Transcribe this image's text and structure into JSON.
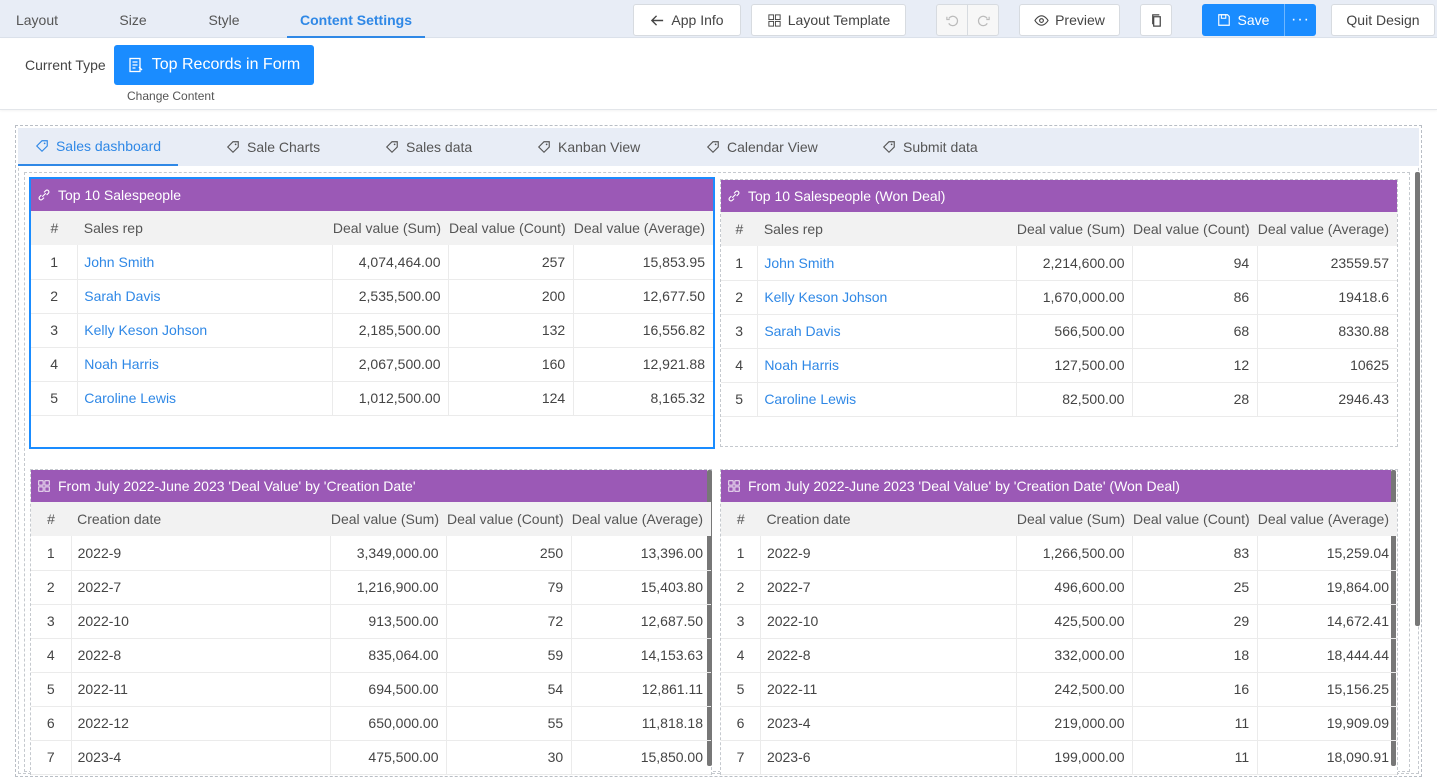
{
  "top_tabs": [
    "Layout",
    "Size",
    "Style",
    "Content Settings"
  ],
  "toolbar": {
    "app_info": "App Info",
    "layout_template": "Layout Template",
    "preview": "Preview",
    "save": "Save",
    "more": "···",
    "quit": "Quit Design"
  },
  "subbar": {
    "current_type_label": "Current Type",
    "type_button": "Top Records in Form",
    "change_content": "Change Content"
  },
  "dashboard_tabs": [
    "Sales dashboard",
    "Sale Charts",
    "Sales data",
    "Kanban View",
    "Calendar View",
    "Submit data"
  ],
  "columns_rep": [
    "#",
    "Sales rep",
    "Deal value (Sum)",
    "Deal value (Count)",
    "Deal value (Average)"
  ],
  "columns_date": [
    "#",
    "Creation date",
    "Deal value (Sum)",
    "Deal value (Count)",
    "Deal value (Average)"
  ],
  "widgets": [
    {
      "title": "Top 10 Salespeople",
      "rows": [
        [
          "1",
          "John Smith",
          "4,074,464.00",
          "257",
          "15,853.95"
        ],
        [
          "2",
          "Sarah Davis",
          "2,535,500.00",
          "200",
          "12,677.50"
        ],
        [
          "3",
          "Kelly Keson Johson",
          "2,185,500.00",
          "132",
          "16,556.82"
        ],
        [
          "4",
          "Noah Harris",
          "2,067,500.00",
          "160",
          "12,921.88"
        ],
        [
          "5",
          "Caroline Lewis",
          "1,012,500.00",
          "124",
          "8,165.32"
        ]
      ]
    },
    {
      "title": "Top 10 Salespeople (Won Deal)",
      "rows": [
        [
          "1",
          "John Smith",
          "2,214,600.00",
          "94",
          "23559.57"
        ],
        [
          "2",
          "Kelly Keson Johson",
          "1,670,000.00",
          "86",
          "19418.6"
        ],
        [
          "3",
          "Sarah Davis",
          "566,500.00",
          "68",
          "8330.88"
        ],
        [
          "4",
          "Noah Harris",
          "127,500.00",
          "12",
          "10625"
        ],
        [
          "5",
          "Caroline Lewis",
          "82,500.00",
          "28",
          "2946.43"
        ]
      ]
    },
    {
      "title": "From July 2022-June 2023 'Deal Value' by 'Creation Date'",
      "rows": [
        [
          "1",
          "2022-9",
          "3,349,000.00",
          "250",
          "13,396.00"
        ],
        [
          "2",
          "2022-7",
          "1,216,900.00",
          "79",
          "15,403.80"
        ],
        [
          "3",
          "2022-10",
          "913,500.00",
          "72",
          "12,687.50"
        ],
        [
          "4",
          "2022-8",
          "835,064.00",
          "59",
          "14,153.63"
        ],
        [
          "5",
          "2022-11",
          "694,500.00",
          "54",
          "12,861.11"
        ],
        [
          "6",
          "2022-12",
          "650,000.00",
          "55",
          "11,818.18"
        ],
        [
          "7",
          "2023-4",
          "475,500.00",
          "30",
          "15,850.00"
        ]
      ]
    },
    {
      "title": "From July 2022-June 2023 'Deal Value' by 'Creation Date' (Won Deal)",
      "rows": [
        [
          "1",
          "2022-9",
          "1,266,500.00",
          "83",
          "15,259.04"
        ],
        [
          "2",
          "2022-7",
          "496,600.00",
          "25",
          "19,864.00"
        ],
        [
          "3",
          "2022-10",
          "425,500.00",
          "29",
          "14,672.41"
        ],
        [
          "4",
          "2022-8",
          "332,000.00",
          "18",
          "18,444.44"
        ],
        [
          "5",
          "2022-11",
          "242,500.00",
          "16",
          "15,156.25"
        ],
        [
          "6",
          "2023-4",
          "219,000.00",
          "11",
          "19,909.09"
        ],
        [
          "7",
          "2023-6",
          "199,000.00",
          "11",
          "18,090.91"
        ]
      ]
    }
  ],
  "colors": {
    "accent": "#1a8cff",
    "widget_header": "#9b59b6",
    "link": "#2f88e6"
  }
}
